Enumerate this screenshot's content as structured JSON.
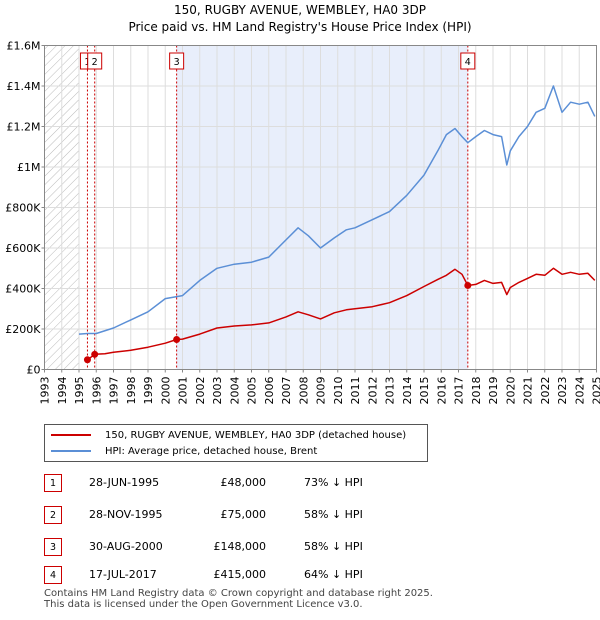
{
  "chart_data": {
    "type": "line",
    "title": "150, RUGBY AVENUE, WEMBLEY, HA0 3DP",
    "subtitle": "Price paid vs. HM Land Registry's House Price Index (HPI)",
    "xlim": [
      1993,
      2025
    ],
    "ylim": [
      0,
      1600000
    ],
    "x_ticks": [
      1993,
      1994,
      1995,
      1996,
      1997,
      1998,
      1999,
      2000,
      2001,
      2002,
      2003,
      2004,
      2005,
      2006,
      2007,
      2008,
      2009,
      2010,
      2011,
      2012,
      2013,
      2014,
      2015,
      2016,
      2017,
      2018,
      2019,
      2020,
      2021,
      2022,
      2023,
      2024,
      2025
    ],
    "y_ticks": [
      {
        "value": 0,
        "label": "£0"
      },
      {
        "value": 200000,
        "label": "£200K"
      },
      {
        "value": 400000,
        "label": "£400K"
      },
      {
        "value": 600000,
        "label": "£600K"
      },
      {
        "value": 800000,
        "label": "£800K"
      },
      {
        "value": 1000000,
        "label": "£1M"
      },
      {
        "value": 1200000,
        "label": "£1.2M"
      },
      {
        "value": 1400000,
        "label": "£1.4M"
      },
      {
        "value": 1600000,
        "label": "£1.6M"
      }
    ],
    "ownership_shading": [
      {
        "from": 2000.66,
        "to": 2017.54
      }
    ],
    "hatch_ranges": [
      {
        "from": 1993,
        "to": 1995.0
      },
      {
        "from": 2025,
        "to": 2025.3
      }
    ],
    "series": [
      {
        "name": "150, RUGBY AVENUE, WEMBLEY, HA0 3DP (detached house)",
        "color": "#cc0000",
        "points": [
          [
            1995.49,
            48000
          ],
          [
            1995.91,
            75000
          ],
          [
            1996.5,
            78000
          ],
          [
            1997,
            85000
          ],
          [
            1998,
            95000
          ],
          [
            1999,
            110000
          ],
          [
            2000,
            130000
          ],
          [
            2000.66,
            148000
          ],
          [
            2001,
            150000
          ],
          [
            2002,
            175000
          ],
          [
            2003,
            205000
          ],
          [
            2004,
            215000
          ],
          [
            2005,
            220000
          ],
          [
            2006,
            230000
          ],
          [
            2007,
            260000
          ],
          [
            2007.7,
            285000
          ],
          [
            2008.3,
            270000
          ],
          [
            2009,
            250000
          ],
          [
            2009.8,
            280000
          ],
          [
            2010.5,
            295000
          ],
          [
            2011,
            300000
          ],
          [
            2012,
            310000
          ],
          [
            2013,
            330000
          ],
          [
            2014,
            365000
          ],
          [
            2015,
            410000
          ],
          [
            2015.8,
            445000
          ],
          [
            2016.3,
            465000
          ],
          [
            2016.8,
            495000
          ],
          [
            2017.2,
            470000
          ],
          [
            2017.54,
            415000
          ],
          [
            2018,
            420000
          ],
          [
            2018.5,
            440000
          ],
          [
            2019,
            425000
          ],
          [
            2019.5,
            430000
          ],
          [
            2019.8,
            370000
          ],
          [
            2020,
            405000
          ],
          [
            2020.5,
            430000
          ],
          [
            2021,
            450000
          ],
          [
            2021.5,
            470000
          ],
          [
            2022,
            465000
          ],
          [
            2022.5,
            500000
          ],
          [
            2023,
            470000
          ],
          [
            2023.5,
            480000
          ],
          [
            2024,
            470000
          ],
          [
            2024.5,
            475000
          ],
          [
            2024.9,
            440000
          ]
        ]
      },
      {
        "name": "HPI: Average price, detached house, Brent",
        "color": "#5b8fd6",
        "points": [
          [
            1995,
            175000
          ],
          [
            1995.5,
            178000
          ],
          [
            1996,
            178000
          ],
          [
            1997,
            205000
          ],
          [
            1998,
            245000
          ],
          [
            1999,
            285000
          ],
          [
            2000,
            350000
          ],
          [
            2001,
            365000
          ],
          [
            2002,
            440000
          ],
          [
            2003,
            500000
          ],
          [
            2004,
            520000
          ],
          [
            2005,
            530000
          ],
          [
            2006,
            555000
          ],
          [
            2007,
            640000
          ],
          [
            2007.7,
            700000
          ],
          [
            2008.3,
            660000
          ],
          [
            2009,
            600000
          ],
          [
            2009.8,
            650000
          ],
          [
            2010.5,
            690000
          ],
          [
            2011,
            700000
          ],
          [
            2012,
            740000
          ],
          [
            2013,
            780000
          ],
          [
            2014,
            860000
          ],
          [
            2015,
            960000
          ],
          [
            2015.8,
            1080000
          ],
          [
            2016.3,
            1160000
          ],
          [
            2016.8,
            1190000
          ],
          [
            2017.2,
            1150000
          ],
          [
            2017.54,
            1120000
          ],
          [
            2018,
            1150000
          ],
          [
            2018.5,
            1180000
          ],
          [
            2019,
            1160000
          ],
          [
            2019.5,
            1150000
          ],
          [
            2019.8,
            1010000
          ],
          [
            2020,
            1080000
          ],
          [
            2020.5,
            1150000
          ],
          [
            2021,
            1200000
          ],
          [
            2021.5,
            1270000
          ],
          [
            2022,
            1290000
          ],
          [
            2022.5,
            1400000
          ],
          [
            2023,
            1270000
          ],
          [
            2023.5,
            1320000
          ],
          [
            2024,
            1310000
          ],
          [
            2024.5,
            1320000
          ],
          [
            2024.9,
            1250000
          ]
        ]
      }
    ],
    "sale_markers": [
      {
        "n": "1",
        "x": 1995.49,
        "y": 48000
      },
      {
        "n": "2",
        "x": 1995.91,
        "y": 75000
      },
      {
        "n": "3",
        "x": 2000.66,
        "y": 148000
      },
      {
        "n": "4",
        "x": 2017.54,
        "y": 415000
      }
    ]
  },
  "legend": {
    "items": [
      {
        "label": "150, RUGBY AVENUE, WEMBLEY, HA0 3DP (detached house)",
        "color": "#cc0000"
      },
      {
        "label": "HPI: Average price, detached house, Brent",
        "color": "#5b8fd6"
      }
    ]
  },
  "sales": [
    {
      "n": "1",
      "date": "28-JUN-1995",
      "price": "£48,000",
      "hpi": "73% ↓ HPI"
    },
    {
      "n": "2",
      "date": "28-NOV-1995",
      "price": "£75,000",
      "hpi": "58% ↓ HPI"
    },
    {
      "n": "3",
      "date": "30-AUG-2000",
      "price": "£148,000",
      "hpi": "58% ↓ HPI"
    },
    {
      "n": "4",
      "date": "17-JUL-2017",
      "price": "£415,000",
      "hpi": "64% ↓ HPI"
    }
  ],
  "footer": {
    "line1": "Contains HM Land Registry data © Crown copyright and database right 2025.",
    "line2": "This data is licensed under the Open Government Licence v3.0."
  }
}
